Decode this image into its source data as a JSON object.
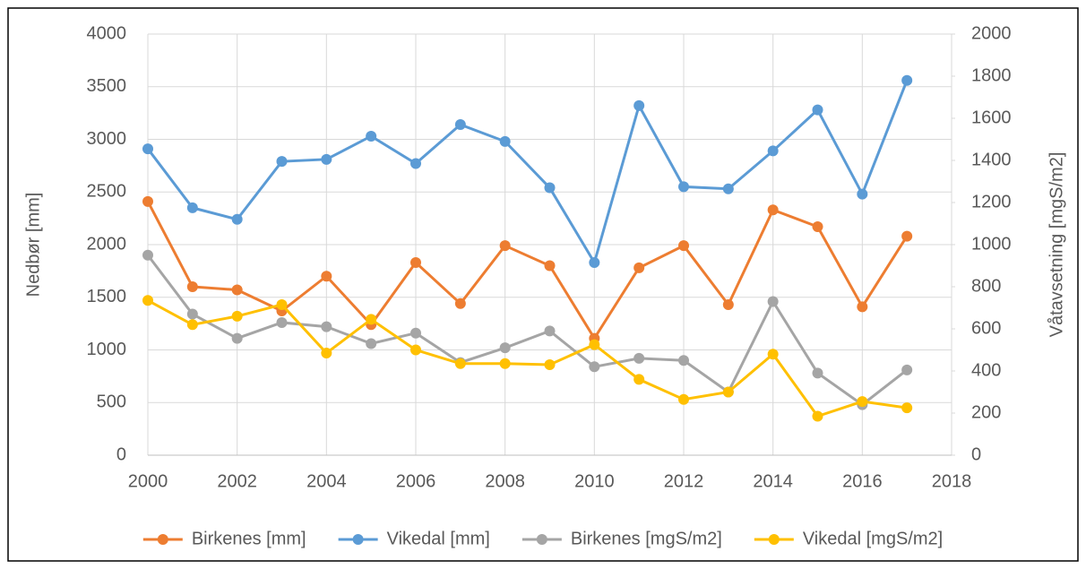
{
  "chart_data": {
    "type": "line",
    "y_label": "Nedbør [mm]",
    "y2_label": "Våtavsetning [mgS/m2]",
    "x": [
      2000,
      2001,
      2002,
      2003,
      2004,
      2005,
      2006,
      2007,
      2008,
      2009,
      2010,
      2011,
      2012,
      2013,
      2014,
      2015,
      2016,
      2017
    ],
    "series": [
      {
        "name": "Birkenes [mm]",
        "color": "#ED7D31",
        "values": [
          2410,
          1600,
          1570,
          1370,
          1700,
          1240,
          1830,
          1440,
          1990,
          1800,
          1110,
          1780,
          1990,
          1430,
          2330,
          2170,
          1410,
          2080
        ]
      },
      {
        "name": "Vikedal [mm]",
        "color": "#5B9BD5",
        "values": [
          2910,
          2350,
          2240,
          2790,
          2810,
          3030,
          2770,
          3140,
          2980,
          2540,
          1830,
          3320,
          2550,
          2530,
          2890,
          3280,
          2480,
          3560
        ]
      },
      {
        "name": "Birkenes [mgS/m2]",
        "color": "#A5A5A5",
        "axis": "y2",
        "values": [
          950,
          670,
          555,
          630,
          610,
          530,
          580,
          440,
          510,
          590,
          420,
          460,
          450,
          300,
          730,
          390,
          240,
          405
        ]
      },
      {
        "name": "Vikedal [mgS/m2]",
        "color": "#FFC000",
        "axis": "y2",
        "values": [
          735,
          620,
          660,
          715,
          485,
          645,
          500,
          435,
          435,
          430,
          525,
          360,
          265,
          300,
          480,
          185,
          255,
          225
        ]
      }
    ],
    "xlim": [
      2000,
      2018
    ],
    "xticks": [
      2000,
      2002,
      2004,
      2006,
      2008,
      2010,
      2012,
      2014,
      2016,
      2018
    ],
    "ylim": [
      0,
      4000
    ],
    "yticks": [
      0,
      500,
      1000,
      1500,
      2000,
      2500,
      3000,
      3500,
      4000
    ],
    "y2lim": [
      0,
      2000
    ],
    "y2ticks": [
      0,
      200,
      400,
      600,
      800,
      1000,
      1200,
      1400,
      1600,
      1800,
      2000
    ],
    "grid": true,
    "legend": "bottom"
  }
}
